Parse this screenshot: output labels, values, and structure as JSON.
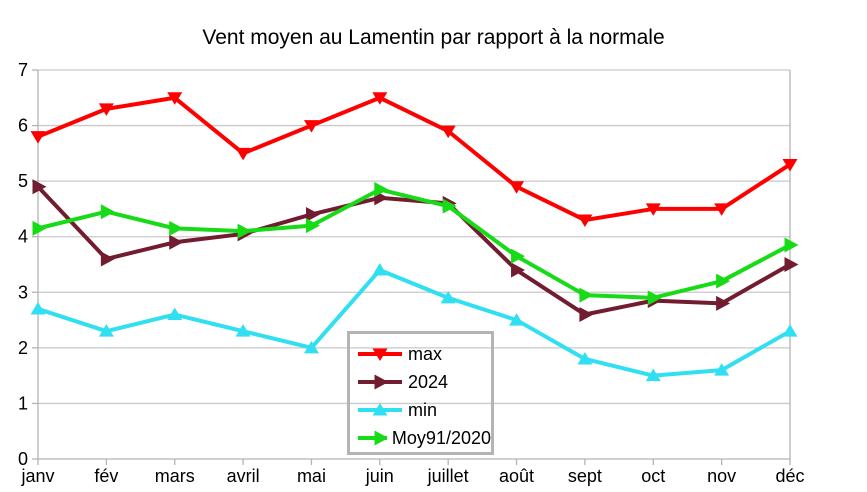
{
  "chart_data": {
    "type": "line",
    "title": "Vent moyen au Lamentin par rapport à la normale",
    "categories": [
      "janv",
      "fév",
      "mars",
      "avril",
      "mai",
      "juin",
      "juillet",
      "août",
      "sept",
      "oct",
      "nov",
      "déc"
    ],
    "y_ticks": [
      "0",
      "1",
      "2",
      "3",
      "4",
      "5",
      "6",
      "7"
    ],
    "ylim": [
      0,
      7
    ],
    "grid": "horizontal",
    "legend_position": "inside-bottom-center",
    "series": [
      {
        "name": "max",
        "color": "#ff0000",
        "marker": "triangle-down",
        "values": [
          5.8,
          6.3,
          6.5,
          5.5,
          6.0,
          6.5,
          5.9,
          4.9,
          4.3,
          4.5,
          4.5,
          5.3
        ]
      },
      {
        "name": "2024",
        "color": "#721c30",
        "marker": "triangle-right",
        "values": [
          4.9,
          3.6,
          3.9,
          4.05,
          4.4,
          4.7,
          4.6,
          3.4,
          2.6,
          2.85,
          2.8,
          3.5
        ]
      },
      {
        "name": "min",
        "color": "#30dff2",
        "marker": "triangle-up",
        "values": [
          2.7,
          2.3,
          2.6,
          2.3,
          2.0,
          3.4,
          2.9,
          2.5,
          1.8,
          1.5,
          1.6,
          2.3
        ]
      },
      {
        "name": "Moy91/2020",
        "color": "#17db17",
        "marker": "triangle-right",
        "values": [
          4.15,
          4.45,
          4.15,
          4.1,
          4.2,
          4.85,
          4.55,
          3.65,
          2.95,
          2.9,
          3.2,
          3.85
        ]
      }
    ],
    "colors": {
      "grid": "#c9c9c9",
      "axis": "#b3b3b3",
      "legend_border": "#b4b4b4",
      "text": "#000000"
    }
  }
}
